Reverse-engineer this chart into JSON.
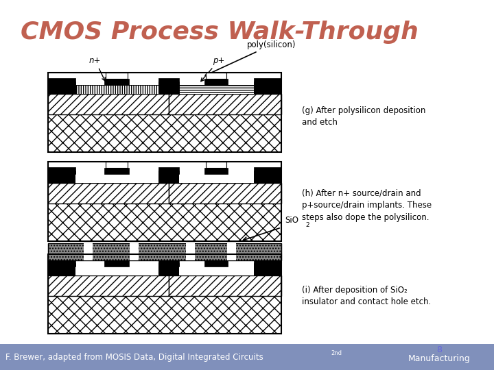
{
  "title": "CMOS Process Walk-Through",
  "title_color": "#C06050",
  "bg_color": "#FFFFFF",
  "footer_bg": "#8090BB",
  "footer_text": "F. Brewer, adapted from MOSIS Data, Digital Integrated Circuits",
  "footer_sup": "2nd",
  "footer_right": "Manufacturing",
  "footer_page": "8",
  "footer_page_color": "#6666DD",
  "diagram_g": {
    "label": "(g) After polysilicon deposition\nand etch",
    "poly_label": "poly(silicon)"
  },
  "diagram_h": {
    "label": "(h) After n+ source/drain and\np+source/drain implants. These\nsteps also dope the polysilicon.",
    "n_label": "n+",
    "p_label": "p+"
  },
  "diagram_i": {
    "label": "(i) After deposition of SiO₂\ninsulator and contact hole etch.",
    "sio2_label": "SiO",
    "sio2_sub": "2"
  }
}
